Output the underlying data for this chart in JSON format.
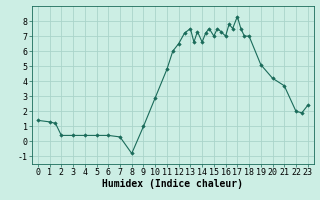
{
  "x": [
    0,
    1,
    1.5,
    2,
    3,
    4,
    5,
    6,
    7,
    8,
    9,
    10,
    11,
    11.5,
    12,
    12.5,
    13,
    13.3,
    13.6,
    14,
    14.3,
    14.6,
    15,
    15.3,
    15.6,
    16,
    16.3,
    16.6,
    17,
    17.3,
    17.6,
    18,
    19,
    20,
    21,
    22,
    22.5,
    23
  ],
  "y": [
    1.4,
    1.3,
    1.2,
    0.4,
    0.4,
    0.4,
    0.4,
    0.4,
    0.3,
    -0.8,
    1.0,
    2.9,
    4.8,
    6.0,
    6.5,
    7.2,
    7.5,
    6.6,
    7.3,
    6.6,
    7.2,
    7.5,
    7.0,
    7.5,
    7.3,
    7.0,
    7.8,
    7.5,
    8.3,
    7.5,
    7.0,
    7.0,
    5.1,
    4.2,
    3.7,
    2.0,
    1.9,
    2.4
  ],
  "line_color": "#1a6b5a",
  "marker_color": "#1a6b5a",
  "bg_color": "#cceee4",
  "grid_color": "#aad4ca",
  "xlabel": "Humidex (Indice chaleur)",
  "xlim": [
    -0.5,
    23.5
  ],
  "ylim": [
    -1.5,
    9.0
  ],
  "xticks": [
    0,
    1,
    2,
    3,
    4,
    5,
    6,
    7,
    8,
    9,
    10,
    11,
    12,
    13,
    14,
    15,
    16,
    17,
    18,
    19,
    20,
    21,
    22,
    23
  ],
  "yticks": [
    -1,
    0,
    1,
    2,
    3,
    4,
    5,
    6,
    7,
    8
  ],
  "xlabel_fontsize": 7,
  "tick_fontsize": 6
}
